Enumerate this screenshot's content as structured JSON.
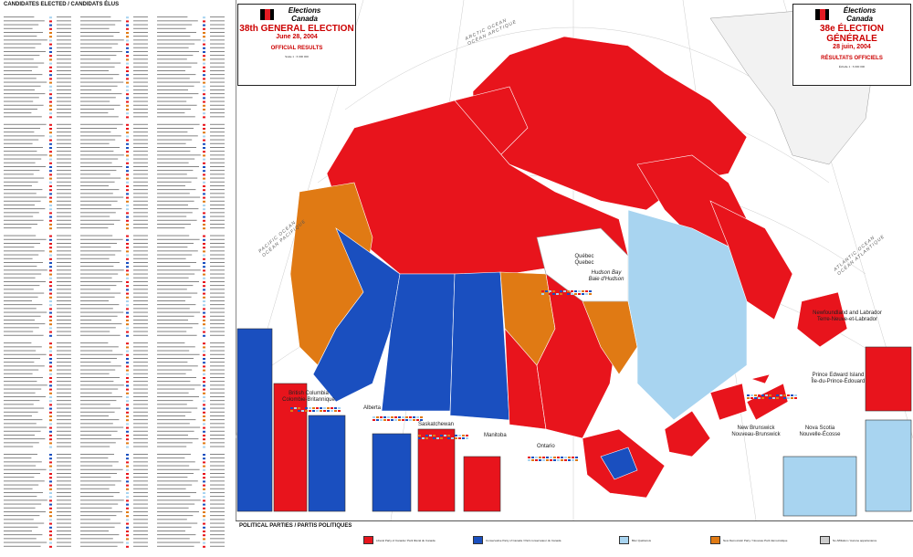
{
  "left_panel": {
    "heading": "CANDIDATES ELECTED / CANDIDATS ÉLUS"
  },
  "title_en": {
    "logo": "Elections Canada",
    "main": "38th GENERAL ELECTION",
    "date": "June 28, 2004",
    "results": "OFFICIAL RESULTS",
    "scale": "Scale   1 : 6 000 000"
  },
  "title_fr": {
    "logo": "Élections Canada",
    "main": "38e ÉLECTION GÉNÉRALE",
    "date": "28 juin, 2004",
    "results": "RÉSULTATS OFFICIELS",
    "scale": "Échelle   1 : 6 000 000"
  },
  "labels": {
    "bc": "British Columbia\nColombie-Britannique",
    "alberta": "Alberta",
    "sask": "Saskatchewan",
    "manitoba": "Manitoba",
    "ontario": "Ontario",
    "quebec": "Québec\nQuebec",
    "nl": "Newfoundland and Labrador\nTerre-Neuve-et-Labrador",
    "pei": "Prince Edward Island\nÎle-du-Prince-Édouard",
    "nb": "New Brunswick\nNouveau-Brunswick",
    "ns": "Nova Scotia\nNouvelle-Écosse",
    "hudson": "Hudson Bay\nBaie d'Hudson",
    "pacific": "PACIFIC OCEAN\nOCÉAN PACIFIQUE",
    "atlantic": "ATLANTIC OCEAN\nOCÉAN ATLANTIQUE",
    "arctic": "ARCTIC OCEAN\nOCÉAN ARCTIQUE"
  },
  "legend": {
    "title": "POLITICAL PARTIES / PARTIS POLITIQUES",
    "items": [
      {
        "label": "Liberal Party of Canada / Parti libéral du Canada",
        "color": "#e8141c"
      },
      {
        "label": "Conservative Party of Canada / Parti conservateur du Canada",
        "color": "#1a4fbf"
      },
      {
        "label": "Bloc Québécois",
        "color": "#a8d4f0"
      },
      {
        "label": "New Democratic Party / Nouveau Parti démocratique",
        "color": "#e07a14"
      },
      {
        "label": "No Affiliation / Aucune appartenance",
        "color": "#cccccc"
      }
    ]
  },
  "colors": {
    "liberal": "#e8141c",
    "conservative": "#1a4fbf",
    "bloc": "#a8d4f0",
    "ndp": "#e07a14",
    "water": "#ffffff",
    "land_other": "#f4f4f4"
  }
}
